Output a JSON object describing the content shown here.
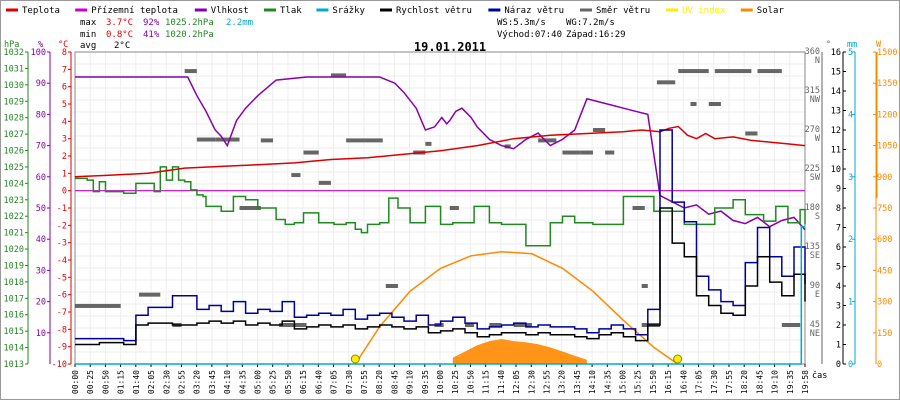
{
  "chart_data": {
    "type": "line",
    "title": "19.01.2011",
    "legend": [
      {
        "label": "Teplota",
        "color": "#dd0000"
      },
      {
        "label": "Přízemní teplota",
        "color": "#cc00cc"
      },
      {
        "label": "Vlhkost",
        "color": "#8800aa"
      },
      {
        "label": "Tlak",
        "color": "#228822"
      },
      {
        "label": "Srážky",
        "color": "#00aacc"
      },
      {
        "label": "Rychlost větru",
        "color": "#000000"
      },
      {
        "label": "Náraz větru",
        "color": "#000099"
      },
      {
        "label": "Směr větru",
        "color": "#666666"
      },
      {
        "label": "UV index",
        "color": "#ffee00"
      },
      {
        "label": "Solar",
        "color": "#ff8800"
      }
    ],
    "stats": {
      "max": {
        "label": "max",
        "temp": "3.7°C",
        "hum": "92%",
        "press": "1025.2hPa",
        "rain": "2.2mm"
      },
      "min": {
        "label": "min",
        "temp": "0.8°C",
        "hum": "41%",
        "press": "1020.2hPa"
      },
      "avg": {
        "label": "avg",
        "temp": "2°C"
      },
      "ws": "WS:5.3m/s",
      "wg": "WG:7.2m/s",
      "sunrise": "Východ:07:40",
      "sunset": "Západ:16:29"
    },
    "axes": {
      "pressure": {
        "unit": "hPa",
        "min": 1013,
        "max": 1032,
        "ticks": [
          1013,
          1014,
          1015,
          1016,
          1017,
          1018,
          1019,
          1020,
          1021,
          1022,
          1023,
          1024,
          1025,
          1026,
          1027,
          1028,
          1029,
          1030,
          1031,
          1032
        ]
      },
      "humidity": {
        "unit": "%",
        "min": 0,
        "max": 100,
        "ticks": [
          10,
          20,
          30,
          40,
          50,
          60,
          70,
          80,
          90,
          100
        ]
      },
      "temperature": {
        "unit": "°C",
        "min": -10,
        "max": 8,
        "ticks": [
          -10,
          -9,
          -8,
          -7,
          -6,
          -5,
          -4,
          -3,
          -2,
          -1,
          0,
          1,
          2,
          3,
          4,
          5,
          6,
          7,
          8
        ]
      },
      "wind_dir": {
        "unit": "°",
        "min": 0,
        "max": 360,
        "ticks": [
          {
            "v": 45,
            "label": "45",
            "dir": "NE"
          },
          {
            "v": 90,
            "label": "90",
            "dir": "E"
          },
          {
            "v": 135,
            "label": "135",
            "dir": "SE"
          },
          {
            "v": 180,
            "label": "180",
            "dir": "S"
          },
          {
            "v": 225,
            "label": "225",
            "dir": "SW"
          },
          {
            "v": 270,
            "label": "270",
            "dir": "W"
          },
          {
            "v": 315,
            "label": "315",
            "dir": "NW"
          },
          {
            "v": 360,
            "label": "360",
            "dir": "N"
          }
        ]
      },
      "wind_speed": {
        "unit": "m/s",
        "min": 0,
        "max": 16,
        "ticks": [
          0,
          1,
          2,
          3,
          4,
          5,
          6,
          7,
          8,
          9,
          10,
          11,
          12,
          13,
          14,
          15,
          16
        ]
      },
      "rain": {
        "unit": "mm",
        "min": 0,
        "max": 5,
        "ticks": [
          0,
          1,
          2,
          3,
          4,
          5
        ]
      },
      "solar": {
        "unit": "W",
        "min": 0,
        "max": 1500,
        "ticks": [
          0,
          150,
          300,
          450,
          600,
          750,
          900,
          1050,
          1200,
          1350,
          1500
        ]
      }
    },
    "xlabel": "čas",
    "x_ticks": [
      "00:00",
      "00:25",
      "00:50",
      "01:15",
      "01:40",
      "02:05",
      "02:30",
      "02:55",
      "03:20",
      "03:45",
      "04:10",
      "04:35",
      "05:00",
      "05:25",
      "05:50",
      "06:15",
      "06:40",
      "07:05",
      "07:30",
      "07:55",
      "08:20",
      "08:45",
      "09:10",
      "09:35",
      "10:00",
      "10:25",
      "10:50",
      "11:15",
      "11:40",
      "12:05",
      "12:30",
      "12:55",
      "13:20",
      "13:45",
      "14:10",
      "14:35",
      "15:00",
      "15:25",
      "15:50",
      "16:15",
      "16:40",
      "17:05",
      "17:30",
      "17:55",
      "18:20",
      "18:45",
      "19:10",
      "19:35",
      "19:58"
    ],
    "series": [
      {
        "name": "Teplota",
        "axis": "temperature",
        "t": [
          0,
          60,
          120,
          180,
          240,
          300,
          360,
          420,
          480,
          540,
          600,
          660,
          720,
          780,
          840,
          900,
          930,
          960,
          975,
          990,
          1005,
          1020,
          1035,
          1050,
          1080,
          1110,
          1140,
          1170,
          1198
        ],
        "values": [
          0.8,
          0.9,
          1.0,
          1.3,
          1.4,
          1.5,
          1.6,
          1.8,
          1.9,
          2.1,
          2.3,
          2.6,
          3.0,
          3.2,
          3.3,
          3.4,
          3.5,
          3.4,
          3.6,
          3.7,
          3.2,
          3.0,
          3.3,
          3.0,
          3.1,
          2.9,
          2.8,
          2.7,
          2.6
        ]
      },
      {
        "name": "Přízemní teplota",
        "axis": "temperature",
        "t": [
          0,
          1198
        ],
        "values": [
          0,
          0
        ]
      },
      {
        "name": "Vlhkost",
        "axis": "humidity",
        "t": [
          0,
          185,
          200,
          215,
          230,
          240,
          250,
          265,
          280,
          300,
          330,
          380,
          450,
          500,
          525,
          540,
          560,
          575,
          590,
          602,
          610,
          615,
          625,
          635,
          650,
          660,
          680,
          700,
          720,
          740,
          760,
          780,
          800,
          820,
          840,
          860,
          880,
          900,
          920,
          940,
          960,
          980,
          1000,
          1020,
          1040,
          1060,
          1080,
          1100,
          1120,
          1140,
          1160,
          1180,
          1198
        ],
        "values": [
          92,
          92,
          86,
          81,
          75,
          73,
          70,
          78,
          82,
          86,
          91,
          92,
          92,
          92,
          90,
          87,
          82,
          75,
          76,
          79,
          77,
          78,
          81,
          82,
          79,
          76,
          72,
          70,
          69,
          72,
          74,
          70,
          72,
          75,
          85,
          84,
          83,
          82,
          81,
          80,
          54,
          52,
          50,
          51,
          48,
          49,
          46,
          45,
          47,
          44,
          46,
          47,
          43
        ]
      },
      {
        "name": "Tlak",
        "axis": "pressure",
        "t": [
          0,
          20,
          30,
          40,
          50,
          80,
          100,
          130,
          140,
          150,
          160,
          170,
          180,
          190,
          200,
          210,
          215,
          240,
          260,
          280,
          300,
          330,
          345,
          360,
          375,
          400,
          425,
          445,
          460,
          470,
          480,
          500,
          515,
          530,
          550,
          575,
          600,
          620,
          640,
          655,
          680,
          700,
          725,
          740,
          760,
          780,
          800,
          820,
          850,
          900,
          950,
          1000,
          1050,
          1080,
          1100,
          1130,
          1150,
          1170,
          1190,
          1198
        ],
        "values": [
          1024.3,
          1024.2,
          1023.5,
          1024.1,
          1023.5,
          1023.4,
          1024.0,
          1023.5,
          1025.0,
          1024.2,
          1025.0,
          1024.2,
          1024.1,
          1023.6,
          1023.3,
          1023.2,
          1022.6,
          1022.3,
          1023.2,
          1023.0,
          1022.5,
          1021.8,
          1021.5,
          1021.6,
          1022.2,
          1021.6,
          1021.5,
          1021.6,
          1021.2,
          1021.0,
          1021.5,
          1021.6,
          1023.1,
          1022.5,
          1021.6,
          1022.6,
          1021.5,
          1021.6,
          1021.6,
          1022.6,
          1021.6,
          1021.5,
          1021.5,
          1020.2,
          1020.2,
          1021.6,
          1022.0,
          1021.6,
          1021.5,
          1023.2,
          1022.3,
          1021.5,
          1022.5,
          1023.0,
          1022.1,
          1021.7,
          1022.6,
          1021.6,
          1022.4,
          1021.5
        ]
      },
      {
        "name": "Rychlost větru",
        "axis": "wind_speed",
        "t": [
          0,
          40,
          80,
          100,
          120,
          160,
          200,
          220,
          240,
          260,
          280,
          300,
          320,
          340,
          360,
          380,
          400,
          420,
          440,
          460,
          480,
          500,
          520,
          540,
          560,
          580,
          600,
          620,
          640,
          660,
          680,
          700,
          720,
          740,
          760,
          780,
          800,
          820,
          840,
          860,
          880,
          900,
          920,
          940,
          960,
          980,
          1000,
          1020,
          1040,
          1060,
          1080,
          1100,
          1120,
          1140,
          1160,
          1180,
          1198
        ],
        "values": [
          1.0,
          1.1,
          1.0,
          2.0,
          2.1,
          2.0,
          2.1,
          2.2,
          2.1,
          2.2,
          2.0,
          2.1,
          2.0,
          2.2,
          1.8,
          1.9,
          2.0,
          1.9,
          2.0,
          1.8,
          1.9,
          2.0,
          1.9,
          1.8,
          1.9,
          1.6,
          1.7,
          1.8,
          1.6,
          1.4,
          1.5,
          1.6,
          1.6,
          1.5,
          1.6,
          1.5,
          1.5,
          1.4,
          1.3,
          1.5,
          1.6,
          1.4,
          1.2,
          2.0,
          8.0,
          6.2,
          5.5,
          3.5,
          3.0,
          2.6,
          2.5,
          4.0,
          5.5,
          4.2,
          3.5,
          4.6,
          3.2
        ]
      },
      {
        "name": "Náraz větru",
        "axis": "wind_speed",
        "t": [
          0,
          40,
          80,
          100,
          120,
          160,
          200,
          220,
          240,
          260,
          280,
          300,
          320,
          340,
          360,
          380,
          400,
          420,
          440,
          460,
          480,
          500,
          520,
          540,
          560,
          580,
          600,
          620,
          640,
          660,
          680,
          700,
          720,
          740,
          760,
          780,
          800,
          820,
          840,
          860,
          880,
          900,
          920,
          940,
          960,
          980,
          1000,
          1020,
          1040,
          1060,
          1080,
          1100,
          1120,
          1140,
          1160,
          1180,
          1198
        ],
        "values": [
          1.3,
          1.3,
          1.2,
          2.5,
          2.9,
          3.5,
          2.8,
          3.0,
          2.7,
          3.2,
          2.6,
          2.8,
          2.7,
          3.2,
          2.4,
          2.5,
          2.6,
          2.5,
          2.8,
          2.3,
          2.5,
          2.6,
          2.4,
          2.2,
          2.5,
          2.0,
          2.2,
          2.4,
          2.1,
          1.8,
          1.9,
          2.0,
          2.1,
          1.9,
          2.0,
          1.9,
          1.9,
          1.8,
          1.6,
          1.8,
          2.0,
          1.8,
          1.5,
          2.8,
          12.0,
          8.3,
          7.3,
          4.5,
          3.8,
          3.2,
          3.0,
          5.2,
          7.0,
          5.5,
          4.5,
          6.0,
          4.1
        ]
      },
      {
        "name": "Srážky",
        "axis": "rain",
        "t": [
          0,
          1190,
          1192,
          1198
        ],
        "values": [
          0,
          0,
          2.2,
          2.2
        ]
      },
      {
        "name": "Směr větru",
        "axis": "wind_dir",
        "segments": [
          [
            0,
            75,
            67
          ],
          [
            105,
            140,
            80
          ],
          [
            160,
            175,
            45
          ],
          [
            180,
            200,
            338
          ],
          [
            200,
            230,
            259
          ],
          [
            230,
            270,
            259
          ],
          [
            270,
            305,
            180
          ],
          [
            305,
            325,
            258
          ],
          [
            335,
            380,
            45
          ],
          [
            355,
            370,
            218
          ],
          [
            375,
            400,
            244
          ],
          [
            400,
            420,
            209
          ],
          [
            420,
            445,
            333
          ],
          [
            445,
            475,
            258
          ],
          [
            475,
            505,
            258
          ],
          [
            510,
            530,
            90
          ],
          [
            555,
            575,
            244
          ],
          [
            575,
            585,
            254
          ],
          [
            590,
            605,
            45
          ],
          [
            615,
            630,
            180
          ],
          [
            640,
            655,
            45
          ],
          [
            680,
            700,
            45
          ],
          [
            705,
            715,
            251
          ],
          [
            720,
            750,
            45
          ],
          [
            760,
            790,
            258
          ],
          [
            800,
            830,
            244
          ],
          [
            830,
            850,
            244
          ],
          [
            850,
            870,
            270
          ],
          [
            870,
            885,
            244
          ],
          [
            915,
            935,
            180
          ],
          [
            930,
            940,
            90
          ],
          [
            930,
            960,
            45
          ],
          [
            955,
            965,
            325
          ],
          [
            965,
            985,
            325
          ],
          [
            990,
            1040,
            338
          ],
          [
            1010,
            1020,
            300
          ],
          [
            1040,
            1060,
            300
          ],
          [
            1050,
            1110,
            338
          ],
          [
            1100,
            1120,
            266
          ],
          [
            1120,
            1160,
            338
          ],
          [
            1160,
            1190,
            45
          ]
        ]
      },
      {
        "name": "Solar",
        "axis": "solar",
        "t": [
          460,
          500,
          550,
          600,
          650,
          700,
          750,
          800,
          850,
          900,
          950,
          989
        ],
        "values": [
          0,
          180,
          350,
          460,
          520,
          540,
          530,
          460,
          350,
          210,
          80,
          0
        ]
      },
      {
        "name": "UV index",
        "axis": "solar",
        "points": [
          {
            "t": 460,
            "v": 0
          },
          {
            "t": 989,
            "v": 0
          }
        ]
      }
    ],
    "solar_fill": {
      "t": [
        620,
        640,
        660,
        680,
        700,
        720,
        740,
        760,
        780,
        800,
        820,
        840
      ],
      "values": [
        30,
        60,
        90,
        110,
        120,
        110,
        105,
        95,
        80,
        60,
        40,
        20
      ]
    }
  }
}
